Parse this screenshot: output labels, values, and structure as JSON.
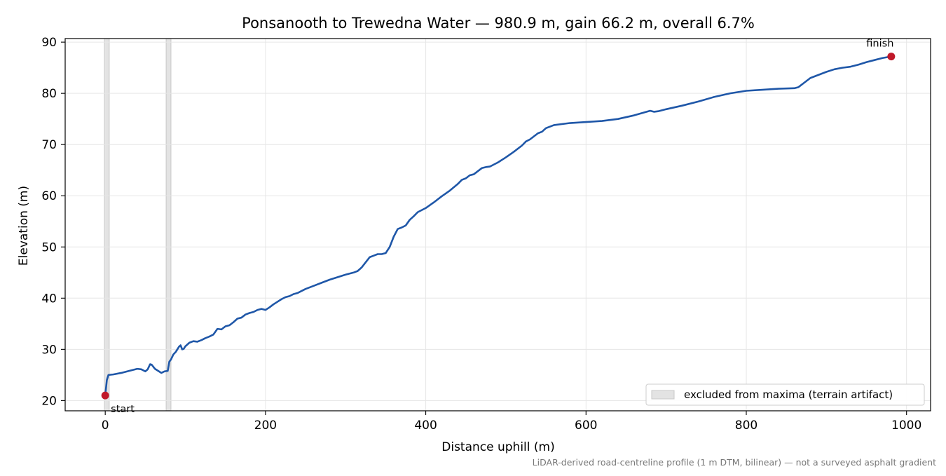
{
  "chart_data": {
    "type": "line",
    "title": "Ponsanooth to Trewedna Water — 980.9 m, gain 66.2 m, overall 6.7%",
    "xlabel": "Distance uphill (m)",
    "ylabel": "Elevation (m)",
    "footnote": "LiDAR-derived road-centreline profile (1 m DTM, bilinear) — not a surveyed asphalt gradient",
    "xlim": [
      -50,
      1030
    ],
    "ylim": [
      18,
      90.7
    ],
    "xticks": [
      0,
      200,
      400,
      600,
      800,
      1000
    ],
    "xtick_labels": [
      "0",
      "200",
      "400",
      "600",
      "800",
      "1000"
    ],
    "yticks": [
      20,
      30,
      40,
      50,
      60,
      70,
      80,
      90
    ],
    "ytick_labels": [
      "20",
      "30",
      "40",
      "50",
      "60",
      "70",
      "80",
      "90"
    ],
    "grid": true,
    "legend": {
      "placement": "lower-right",
      "entries": [
        "excluded from maxima (terrain artifact)"
      ]
    },
    "colors": {
      "line": "#1f57a8",
      "marker": "#c0182a",
      "band": "#d9d9d9",
      "grid": "#e6e6e6",
      "footnote": "#777777"
    },
    "excluded_bands": [
      [
        -1,
        5
      ],
      [
        76,
        82
      ]
    ],
    "series": [
      {
        "x": [
          0,
          2,
          4,
          10,
          20,
          30,
          40,
          45,
          50,
          53,
          56,
          58,
          60,
          62,
          66,
          70,
          74,
          78,
          80,
          82,
          85,
          88,
          92,
          94,
          96,
          98,
          100,
          105,
          110,
          115,
          120,
          125,
          130,
          135,
          140,
          145,
          150,
          155,
          160,
          165,
          170,
          175,
          180,
          185,
          190,
          195,
          200,
          205,
          210,
          215,
          220,
          225,
          230,
          235,
          240,
          245,
          250,
          260,
          270,
          280,
          290,
          300,
          310,
          315,
          320,
          325,
          330,
          335,
          340,
          345,
          350,
          355,
          360,
          365,
          370,
          375,
          380,
          385,
          390,
          400,
          410,
          420,
          430,
          440,
          445,
          450,
          455,
          460,
          465,
          470,
          475,
          480,
          490,
          500,
          510,
          520,
          525,
          530,
          535,
          540,
          545,
          550,
          560,
          580,
          600,
          620,
          640,
          660,
          680,
          685,
          690,
          700,
          720,
          740,
          760,
          780,
          800,
          820,
          840,
          860,
          865,
          870,
          875,
          880,
          890,
          900,
          910,
          920,
          930,
          940,
          950,
          960,
          970,
          980.9
        ],
        "y": [
          21.0,
          24.0,
          25.0,
          25.1,
          25.4,
          25.8,
          26.2,
          26.1,
          25.7,
          26.1,
          27.1,
          27.0,
          26.6,
          26.2,
          25.8,
          25.4,
          25.7,
          25.8,
          27.6,
          28.0,
          29.0,
          29.5,
          30.5,
          30.8,
          30.0,
          30.1,
          30.6,
          31.3,
          31.6,
          31.5,
          31.8,
          32.2,
          32.5,
          32.9,
          34.0,
          33.9,
          34.5,
          34.7,
          35.3,
          36.0,
          36.2,
          36.8,
          37.1,
          37.3,
          37.7,
          37.9,
          37.7,
          38.2,
          38.8,
          39.3,
          39.8,
          40.2,
          40.4,
          40.8,
          41.0,
          41.4,
          41.8,
          42.4,
          43.0,
          43.6,
          44.1,
          44.6,
          45.0,
          45.3,
          46.0,
          47.0,
          48.0,
          48.3,
          48.6,
          48.6,
          48.8,
          50.0,
          52.0,
          53.5,
          53.8,
          54.2,
          55.3,
          56.0,
          56.8,
          57.6,
          58.7,
          59.9,
          61.0,
          62.3,
          63.1,
          63.4,
          64.0,
          64.2,
          64.8,
          65.4,
          65.6,
          65.7,
          66.5,
          67.5,
          68.6,
          69.8,
          70.6,
          71.0,
          71.6,
          72.2,
          72.5,
          73.2,
          73.8,
          74.2,
          74.4,
          74.6,
          75.0,
          75.7,
          76.6,
          76.4,
          76.5,
          76.9,
          77.6,
          78.4,
          79.3,
          80.0,
          80.5,
          80.7,
          80.9,
          81.0,
          81.2,
          81.8,
          82.4,
          83.0,
          83.6,
          84.2,
          84.7,
          85.0,
          85.2,
          85.6,
          86.1,
          86.5,
          86.9,
          87.2
        ]
      }
    ],
    "annotations": [
      {
        "text": "start",
        "x": 0,
        "y": 21.0
      },
      {
        "text": "finish",
        "x": 980.9,
        "y": 87.2
      }
    ]
  }
}
